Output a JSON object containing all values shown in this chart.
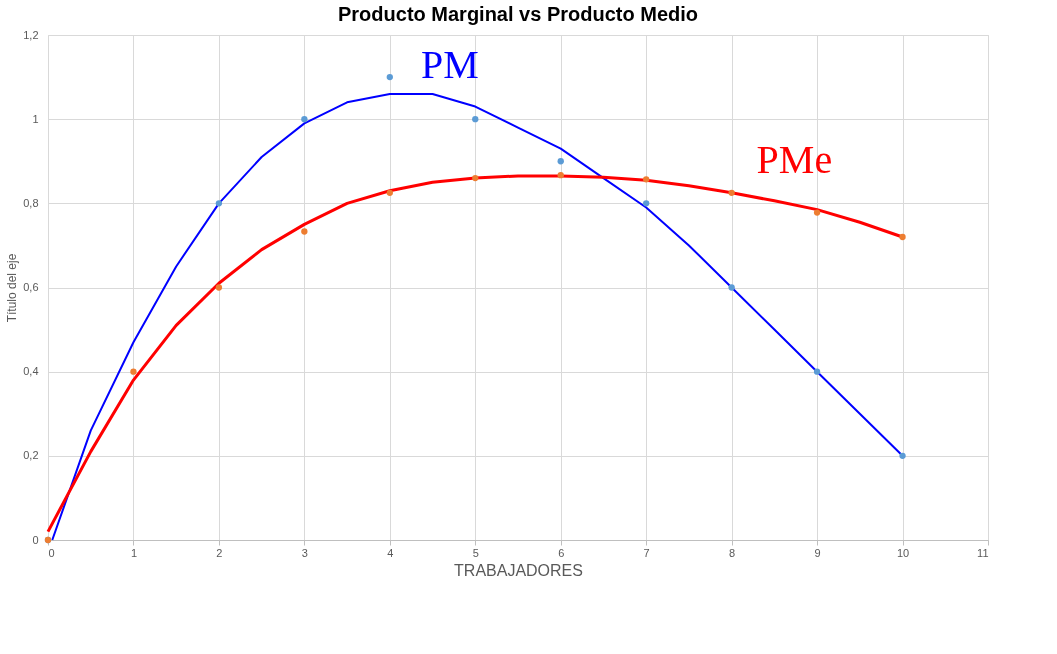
{
  "chart_data": {
    "type": "scatter",
    "title": "Producto Marginal vs Producto Medio",
    "xlabel": "TRABAJADORES",
    "ylabel": "Título del eje",
    "xlim": [
      0,
      11
    ],
    "xticks": [
      0,
      1,
      2,
      3,
      4,
      5,
      6,
      7,
      8,
      9,
      10,
      11
    ],
    "ylim": [
      0,
      1.2
    ],
    "yticks": [
      0,
      {
        "value": 0.2,
        "label": "0,2"
      },
      {
        "value": 0.4,
        "label": "0,4"
      },
      {
        "value": 0.6,
        "label": "0,6"
      },
      {
        "value": 0.8,
        "label": "0,8"
      },
      1,
      {
        "value": 1.2,
        "label": "1,2"
      }
    ],
    "grid": true,
    "legend": false,
    "marker": "circle",
    "series": [
      {
        "type": "scatter",
        "color": "#5b9bd5",
        "x": [
          0,
          1,
          2,
          3,
          4,
          5,
          6,
          7,
          8,
          9,
          10
        ],
        "values": [
          0,
          null,
          0.8,
          1.0,
          1.1,
          1.0,
          0.9,
          0.8,
          0.6,
          0.4,
          0.2
        ]
      },
      {
        "type": "scatter",
        "color": "#ed7d31",
        "x": [
          0,
          1,
          2,
          3,
          4,
          5,
          6,
          7,
          8,
          9,
          10
        ],
        "values": [
          0,
          0.4,
          0.6,
          0.733,
          0.825,
          0.86,
          0.867,
          0.857,
          0.825,
          0.778,
          0.72
        ]
      },
      {
        "type": "line",
        "name": "PM",
        "marker": "none",
        "color": "#0000ff",
        "line_style": "solid",
        "x": [
          0.05,
          0.5,
          1,
          1.5,
          2,
          2.5,
          3,
          3.5,
          4,
          4.5,
          5,
          5.5,
          6,
          6.5,
          7,
          7.5,
          8,
          8.5,
          9,
          9.5,
          10
        ],
        "values": [
          0.0,
          0.26,
          0.47,
          0.65,
          0.8,
          0.91,
          0.99,
          1.04,
          1.06,
          1.06,
          1.03,
          0.98,
          0.93,
          0.86,
          0.79,
          0.7,
          0.6,
          0.5,
          0.4,
          0.3,
          0.2
        ]
      },
      {
        "type": "line",
        "name": "PMe",
        "marker": "none",
        "color": "#ff0000",
        "line_style": "solid",
        "x": [
          0,
          0.5,
          1,
          1.5,
          2,
          2.5,
          3,
          3.5,
          4,
          4.5,
          5,
          5.5,
          6,
          6.5,
          7,
          7.5,
          8,
          8.5,
          9,
          9.5,
          10
        ],
        "values": [
          0.02,
          0.21,
          0.38,
          0.51,
          0.61,
          0.69,
          0.75,
          0.8,
          0.83,
          0.85,
          0.86,
          0.865,
          0.865,
          0.862,
          0.855,
          0.842,
          0.825,
          0.806,
          0.785,
          0.755,
          0.72
        ]
      }
    ]
  }
}
